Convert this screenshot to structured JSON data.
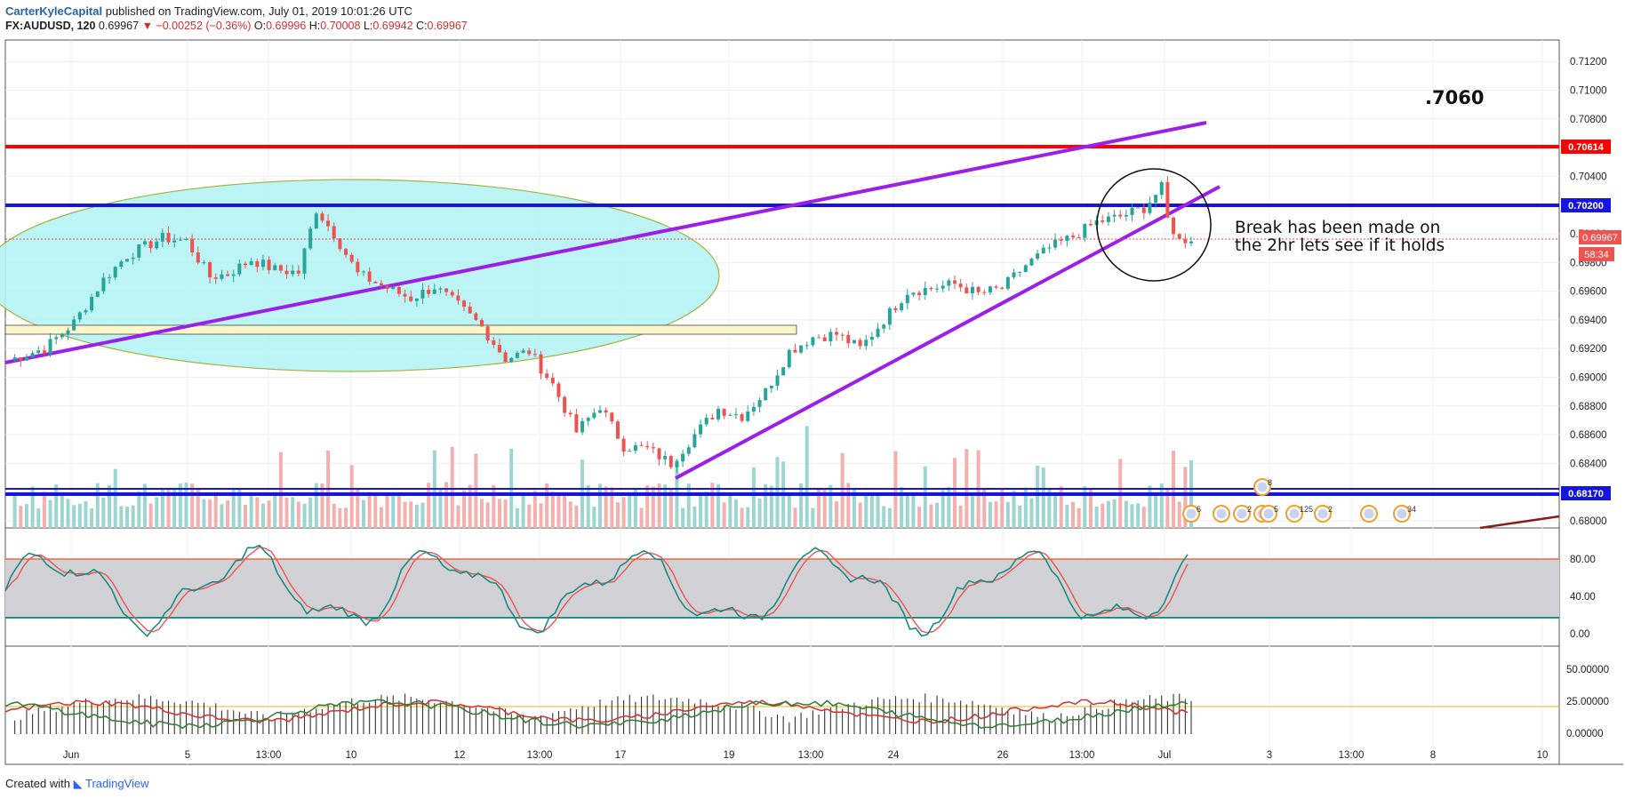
{
  "header": {
    "author": "CarterKyleCapital",
    "published_text": " published on TradingView.com, July 01, 2019 10:01:26 UTC",
    "symbol": "FX:AUDUSD, 120",
    "last": " 0.69967 ",
    "change": "▼ −0.00252 (−0.36%)",
    "ohlc": {
      "o_label": " O:",
      "o": "0.69996",
      "h_label": " H:",
      "h": "0.70008",
      "l_label": " L:",
      "l": "0.69942",
      "c_label": " C:",
      "c": "0.69967"
    }
  },
  "footer": {
    "created_with": "Created with ",
    "brand": "TradingView"
  },
  "colors": {
    "up": "#26a69a",
    "down": "#ef5350",
    "resistance": "#ff0000",
    "level": "#1515e0",
    "trend": "#9b1fe8",
    "ellipse_fill": "#b6f3f5",
    "ellipse_stroke": "#9aab2a",
    "stoch_band": "#d2d2d6"
  },
  "chart_data": {
    "type": "candlestick",
    "symbol": "FX:AUDUSD",
    "interval": "120",
    "price_axis": {
      "ticks": [
        "0.71200",
        "0.71000",
        "0.70800",
        "0.70600",
        "0.70400",
        "0.70200",
        "0.70000",
        "0.69800",
        "0.69600",
        "0.69400",
        "0.69200",
        "0.69000",
        "0.68800",
        "0.68600",
        "0.68400",
        "0.68200",
        "0.68000"
      ],
      "range": [
        0.6795,
        0.7135
      ]
    },
    "time_axis": [
      "Jun",
      "5",
      "13:00",
      "10",
      "12",
      "13:00",
      "17",
      "19",
      "13:00",
      "24",
      "26",
      "13:00",
      "Jul",
      "3",
      "13:00",
      "8",
      "10"
    ],
    "price_labels": [
      {
        "name": "resistance",
        "value": "0.70614"
      },
      {
        "name": "blue-upper",
        "value": "0.70200"
      },
      {
        "name": "last-price",
        "value": "0.69967"
      },
      {
        "name": "countdown",
        "value": "58:34"
      },
      {
        "name": "blue-lower",
        "value": "0.68170"
      }
    ],
    "annotations": {
      "target": ".7060",
      "note_line1": "Break has been made on",
      "note_line2": "the 2hr lets see if it holds"
    },
    "levels": {
      "resistance": 0.70614,
      "blue_upper": 0.702,
      "blue_lower": 0.6817
    },
    "closes_anchor": [
      [
        0,
        0.6912
      ],
      [
        6,
        0.692
      ],
      [
        11,
        0.6938
      ],
      [
        16,
        0.6968
      ],
      [
        20,
        0.6985
      ],
      [
        26,
        0.6997
      ],
      [
        30,
        0.6995
      ],
      [
        34,
        0.697
      ],
      [
        37,
        0.6972
      ],
      [
        41,
        0.6982
      ],
      [
        45,
        0.6975
      ],
      [
        49,
        0.6973
      ],
      [
        52,
        0.7017
      ],
      [
        55,
        0.7
      ],
      [
        59,
        0.6972
      ],
      [
        64,
        0.6962
      ],
      [
        68,
        0.6955
      ],
      [
        72,
        0.6963
      ],
      [
        76,
        0.695
      ],
      [
        80,
        0.6935
      ],
      [
        84,
        0.6913
      ],
      [
        88,
        0.6918
      ],
      [
        92,
        0.6895
      ],
      [
        96,
        0.6862
      ],
      [
        100,
        0.688
      ],
      [
        104,
        0.6852
      ],
      [
        108,
        0.685
      ],
      [
        112,
        0.684
      ],
      [
        116,
        0.686
      ],
      [
        120,
        0.6878
      ],
      [
        124,
        0.6873
      ],
      [
        128,
        0.689
      ],
      [
        132,
        0.6918
      ],
      [
        136,
        0.6928
      ],
      [
        140,
        0.693
      ],
      [
        144,
        0.692
      ],
      [
        148,
        0.694
      ],
      [
        152,
        0.696
      ],
      [
        156,
        0.6962
      ],
      [
        160,
        0.6965
      ],
      [
        164,
        0.6958
      ],
      [
        168,
        0.6962
      ],
      [
        172,
        0.6978
      ],
      [
        176,
        0.699
      ],
      [
        180,
        0.6998
      ],
      [
        184,
        0.7008
      ],
      [
        188,
        0.7012
      ],
      [
        192,
        0.7018
      ],
      [
        195,
        0.7032
      ],
      [
        196,
        0.701
      ],
      [
        198,
        0.6995
      ],
      [
        200,
        0.6997
      ]
    ],
    "stochastic_axis": [
      "80.00",
      "40.00",
      "0.00"
    ],
    "stochastic_bounds": [
      80,
      20
    ],
    "adx_axis": [
      "50.00000",
      "25.00000",
      "0.00000"
    ],
    "adx_level": 20
  }
}
